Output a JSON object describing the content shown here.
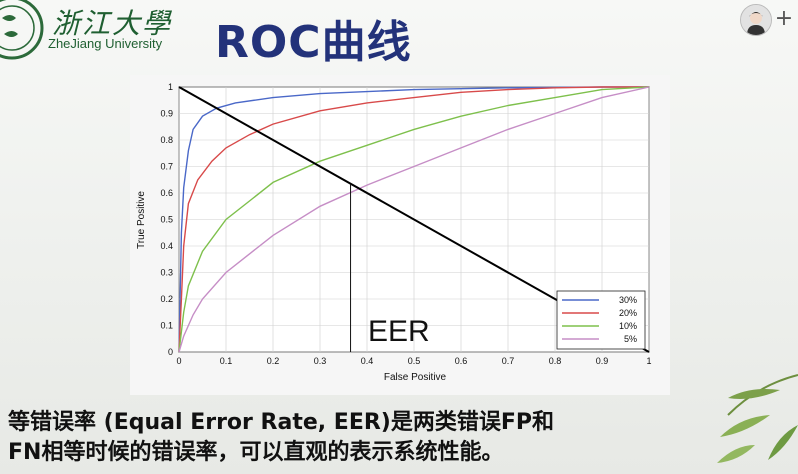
{
  "header": {
    "logo_script": "浙江大學",
    "logo_english": "ZheJiang University",
    "slide_title": "ROC曲线"
  },
  "toolbar": {
    "add_label": "+",
    "avatar_icon": "user-avatar-icon"
  },
  "chart_data": {
    "type": "line",
    "xlabel": "False Positive",
    "ylabel": "True Positive",
    "xlim": [
      0,
      1
    ],
    "ylim": [
      0,
      1
    ],
    "x_ticks": [
      "0",
      "0.1",
      "0.2",
      "0.3",
      "0.4",
      "0.5",
      "0.6",
      "0.7",
      "0.8",
      "0.9",
      "1"
    ],
    "y_ticks": [
      "0",
      "0.1",
      "0.2",
      "0.3",
      "0.4",
      "0.5",
      "0.6",
      "0.7",
      "0.8",
      "0.9",
      "1"
    ],
    "grid": true,
    "legend_position": "bottom-right",
    "series": [
      {
        "name": "30%",
        "color": "#4a68c8",
        "x": [
          0,
          0.005,
          0.01,
          0.02,
          0.03,
          0.05,
          0.08,
          0.12,
          0.2,
          0.3,
          0.5,
          0.7,
          0.9,
          1
        ],
        "y": [
          0,
          0.45,
          0.62,
          0.76,
          0.84,
          0.89,
          0.92,
          0.94,
          0.96,
          0.975,
          0.99,
          0.997,
          1,
          1
        ]
      },
      {
        "name": "20%",
        "color": "#d84a4a",
        "x": [
          0,
          0.005,
          0.01,
          0.02,
          0.04,
          0.07,
          0.1,
          0.15,
          0.2,
          0.3,
          0.4,
          0.5,
          0.6,
          0.7,
          0.8,
          0.9,
          1
        ],
        "y": [
          0,
          0.2,
          0.4,
          0.56,
          0.65,
          0.72,
          0.77,
          0.82,
          0.86,
          0.91,
          0.94,
          0.96,
          0.98,
          0.99,
          0.997,
          1,
          1
        ]
      },
      {
        "name": "10%",
        "color": "#7ec04c",
        "x": [
          0,
          0.01,
          0.02,
          0.05,
          0.1,
          0.15,
          0.2,
          0.3,
          0.4,
          0.5,
          0.6,
          0.7,
          0.8,
          0.9,
          1
        ],
        "y": [
          0,
          0.15,
          0.25,
          0.38,
          0.5,
          0.57,
          0.64,
          0.72,
          0.78,
          0.84,
          0.89,
          0.93,
          0.96,
          0.99,
          1
        ]
      },
      {
        "name": "5%",
        "color": "#c68ec6",
        "x": [
          0,
          0.01,
          0.03,
          0.05,
          0.1,
          0.15,
          0.2,
          0.3,
          0.4,
          0.5,
          0.6,
          0.7,
          0.8,
          0.9,
          1
        ],
        "y": [
          0,
          0.06,
          0.14,
          0.2,
          0.3,
          0.37,
          0.44,
          0.55,
          0.63,
          0.7,
          0.77,
          0.84,
          0.9,
          0.96,
          1
        ]
      }
    ],
    "diagonal": {
      "x": [
        0,
        1
      ],
      "y": [
        1,
        0
      ],
      "color": "#000000"
    },
    "eer_marker": {
      "x": 0.365,
      "y": 0.635,
      "label": "EER"
    }
  },
  "caption": {
    "line1": "等错误率 (Equal Error Rate, EER)是两类错误FP和",
    "line2": "FN相等时候的错误率，可以直观的表示系统性能。"
  }
}
